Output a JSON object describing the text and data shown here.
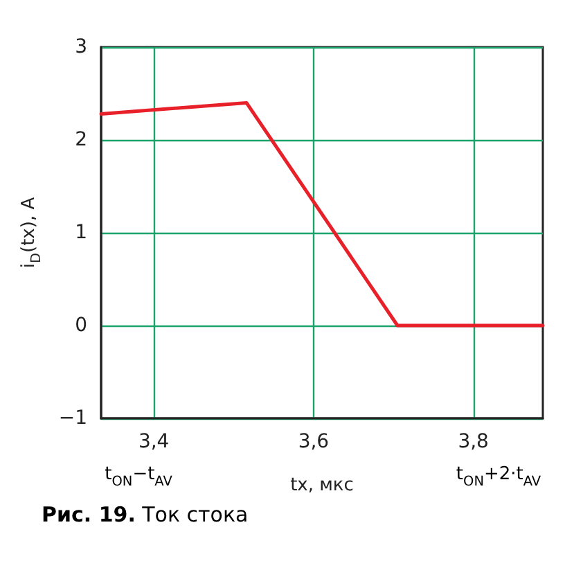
{
  "chart_data": {
    "type": "line",
    "title": "Рис. 19. Ток стока",
    "xlabel": "tx, мкс",
    "ylabel": "i$_{D}$(tx), A",
    "annotations": [
      "t$_{ON}$−t$_{AV}$",
      "t$_{ON}$+2·t$_{AV}$"
    ],
    "x": [
      3.334,
      3.516,
      3.705,
      3.887
    ],
    "series": [
      {
        "color": "#e8202a",
        "values": [
          2.28,
          2.4,
          0,
          0
        ]
      }
    ],
    "xlim": [
      3.334,
      3.887
    ],
    "xticks": [
      {
        "value": 3.4,
        "label": "3,4"
      },
      {
        "value": 3.6,
        "label": "3,6"
      },
      {
        "value": 3.8,
        "label": "3,8"
      }
    ],
    "ylim": [
      -1,
      3
    ],
    "yticks": [
      {
        "value": -1,
        "label": "−1"
      },
      0,
      1,
      2,
      3
    ],
    "grid": true,
    "marker": "none",
    "line_style": "solid"
  }
}
